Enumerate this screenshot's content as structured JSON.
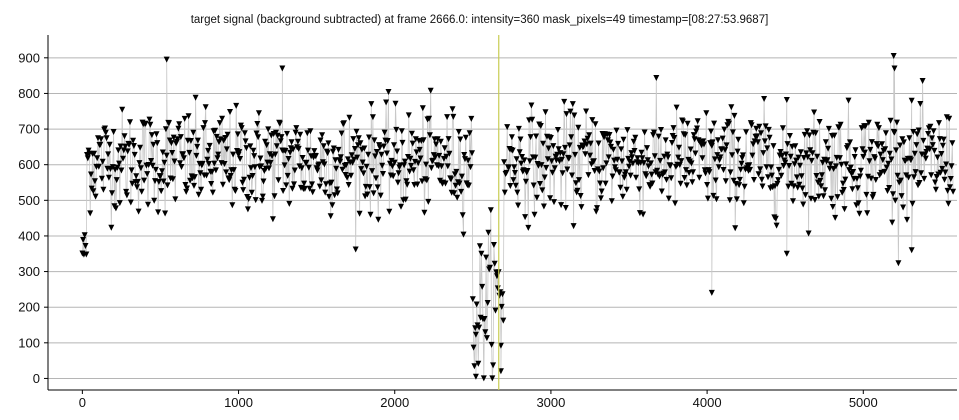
{
  "chart_data": {
    "type": "scatter",
    "title": "target signal (background subtracted) at frame 2666.0: intensity=360 mask_pixels=49 timestamp=[08:27:53.9687]",
    "xlabel": "",
    "ylabel": "",
    "xlim": [
      -220,
      5600
    ],
    "ylim": [
      -10,
      950
    ],
    "x_ticks": [
      0,
      1000,
      2000,
      3000,
      4000,
      5000
    ],
    "y_ticks": [
      0,
      100,
      200,
      300,
      400,
      500,
      600,
      700,
      800,
      900
    ],
    "grid": {
      "horizontal": true,
      "vertical": false
    },
    "marker": "triangle-down",
    "line_color": "#c8c8c8",
    "marker_color": "#000000",
    "cursor": {
      "x": 2666,
      "color": "#c8cc52"
    },
    "segments": [
      {
        "x_start": 0,
        "x_end": 30,
        "mean": 360,
        "spread": 40
      },
      {
        "x_start": 30,
        "x_end": 2500,
        "mean": 610,
        "spread": 95
      },
      {
        "x_start": 2500,
        "x_end": 2560,
        "mean": 190,
        "spread": 140
      },
      {
        "x_start": 2560,
        "x_end": 2700,
        "mean": 210,
        "spread": 150
      },
      {
        "x_start": 2700,
        "x_end": 5580,
        "mean": 610,
        "spread": 95
      }
    ],
    "outliers": [
      {
        "x": 540,
        "y": 895
      },
      {
        "x": 1280,
        "y": 870
      },
      {
        "x": 4030,
        "y": 240
      },
      {
        "x": 5195,
        "y": 905
      },
      {
        "x": 5200,
        "y": 870
      },
      {
        "x": 2520,
        "y": 5
      },
      {
        "x": 2680,
        "y": 20
      },
      {
        "x": 4510,
        "y": 350
      },
      {
        "x": 5310,
        "y": 360
      }
    ],
    "sample_step": 5
  }
}
